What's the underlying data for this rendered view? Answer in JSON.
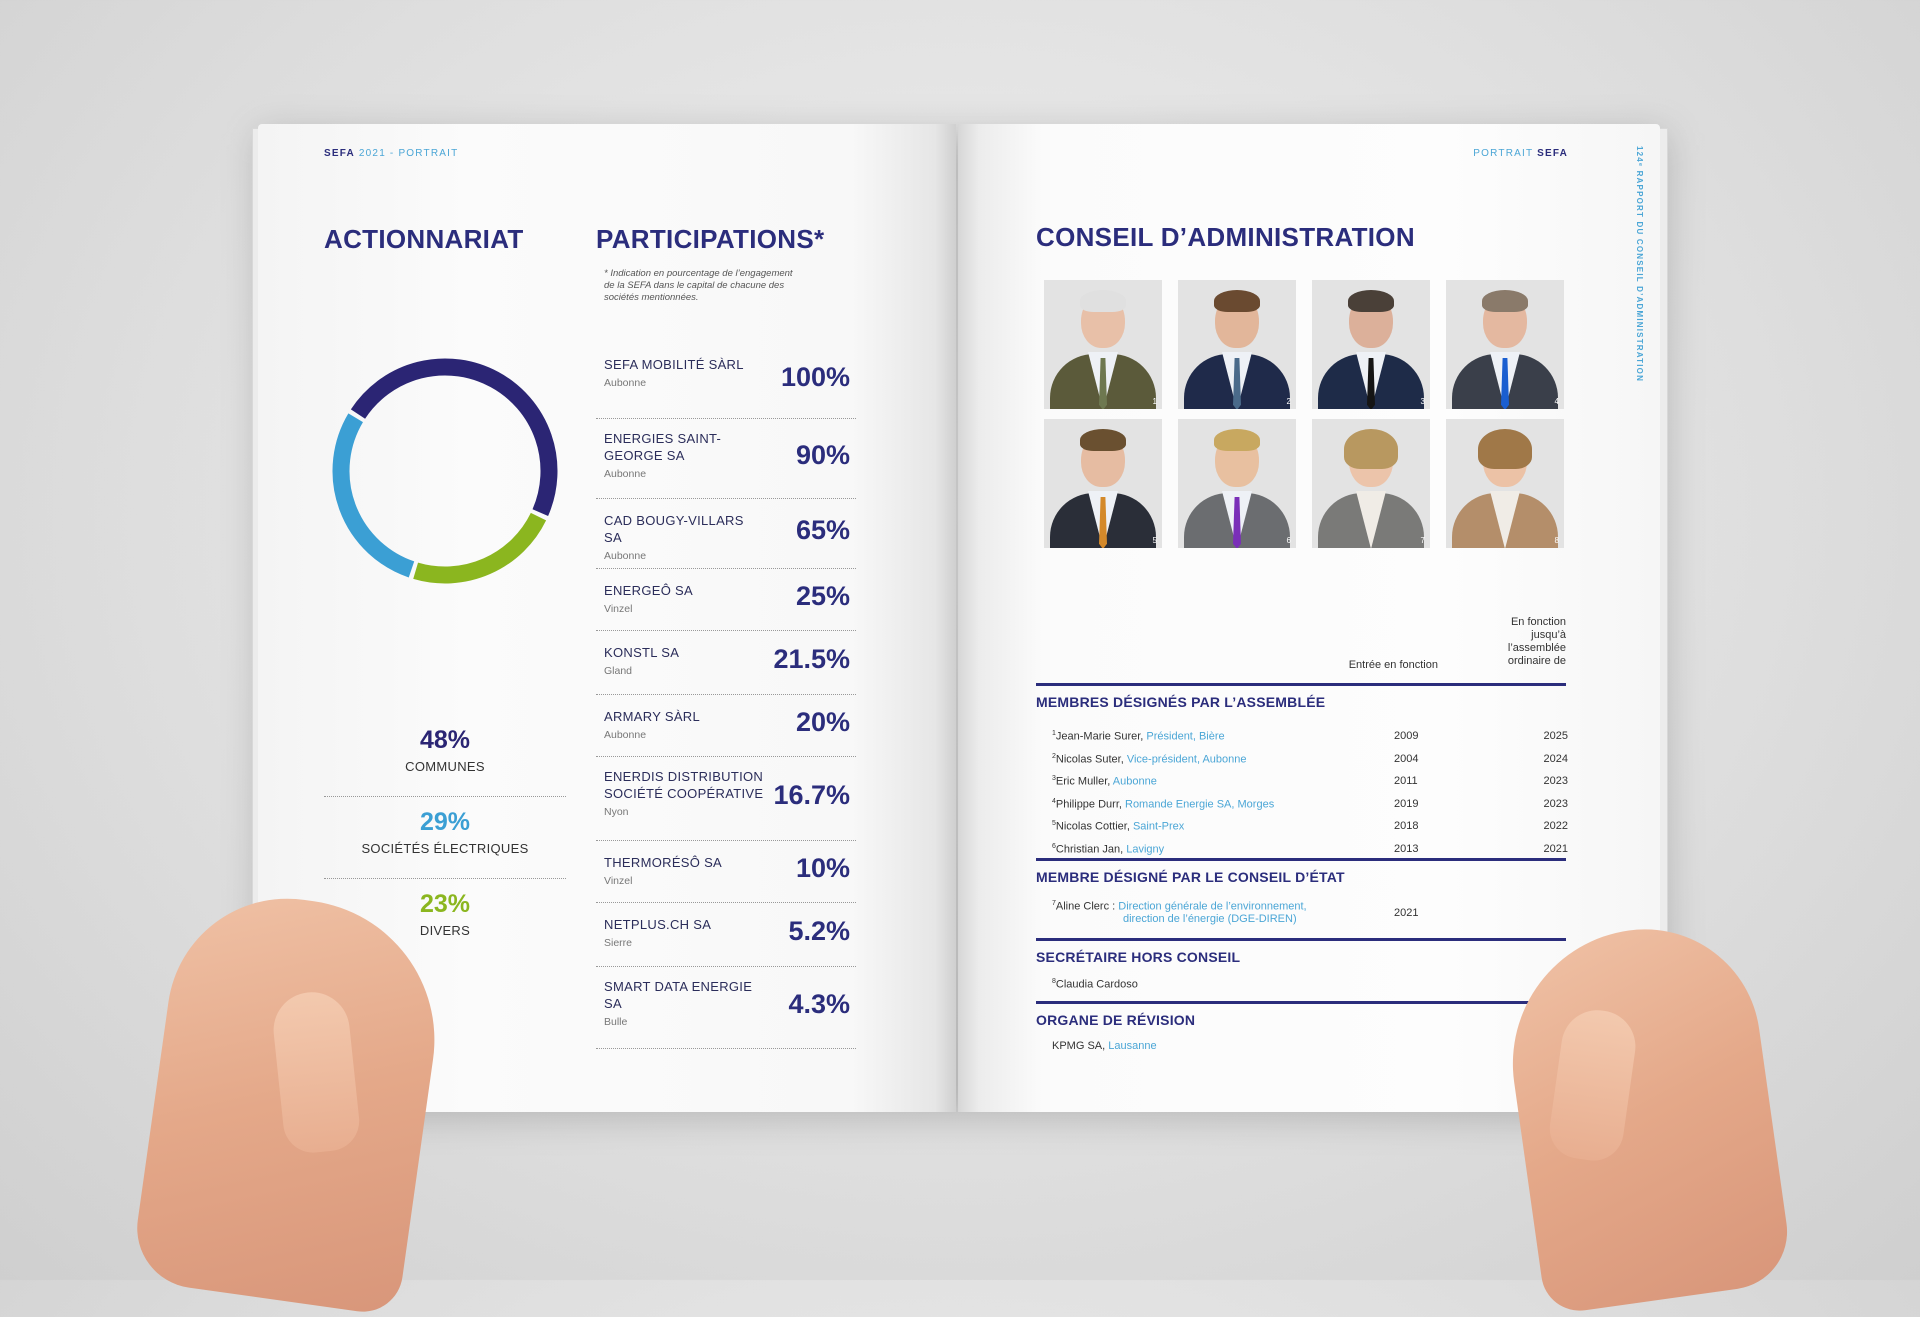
{
  "left_page": {
    "running_head": {
      "brand": "SEFA",
      "rest": "2021 - PORTRAIT"
    },
    "shareholding_title": "ACTIONNARIAT",
    "participations_title": "PARTICIPATIONS*",
    "participations_note": "* Indication en pourcentage de l’engagement de la SEFA dans le capital de chacune des sociétés mentionnées.",
    "participations": [
      {
        "name": "SEFA MOBILITÉ SÀRL",
        "city": "Aubonne",
        "value": "100%"
      },
      {
        "name": "ENERGIES SAINT-GEORGE SA",
        "city": "Aubonne",
        "value": "90%"
      },
      {
        "name": "CAD BOUGY-VILLARS SA",
        "city": "Aubonne",
        "value": "65%"
      },
      {
        "name": "ENERGEÔ SA",
        "city": "Vinzel",
        "value": "25%"
      },
      {
        "name": "KONSTL SA",
        "city": "Gland",
        "value": "21.5%"
      },
      {
        "name": "ARMARY SÀRL",
        "city": "Aubonne",
        "value": "20%"
      },
      {
        "name": "ENERDIS DISTRIBUTION SOCIÉTÉ COOPÉRATIVE",
        "city": "Nyon",
        "value": "16.7%"
      },
      {
        "name": "THERMORÉSÔ SA",
        "city": "Vinzel",
        "value": "10%"
      },
      {
        "name": "NETPLUS.CH SA",
        "city": "Sierre",
        "value": "5.2%"
      },
      {
        "name": "SMART DATA ENERGIE SA",
        "city": "Bulle",
        "value": "4.3%"
      }
    ]
  },
  "chart_data": {
    "type": "pie",
    "title": "ACTIONNARIAT",
    "categories": [
      "COMMUNES",
      "SOCIÉTÉS ÉLECTRIQUES",
      "DIVERS"
    ],
    "values": [
      48,
      29,
      23
    ],
    "labels": [
      "48%",
      "29%",
      "23%"
    ],
    "colors": [
      "#2b2574",
      "#3b9fd4",
      "#8bb61f"
    ],
    "donut": true
  },
  "right_page": {
    "running_head": {
      "rest": "PORTRAIT",
      "brand": "SEFA"
    },
    "vertical_text": "124ᵉ RAPPORT DU CONSEIL D’ADMINISTRATION",
    "title": "CONSEIL D’ADMINISTRATION",
    "photos": [
      "1",
      "2",
      "3",
      "4",
      "5",
      "6",
      "7",
      "8"
    ],
    "col_entry": "Entrée en fonction",
    "col_until": "En fonction jusqu’à l’assemblée ordinaire de",
    "sections": [
      {
        "title": "MEMBRES DÉSIGNÉS PAR L’ASSEMBLÉE",
        "rows": [
          {
            "num": "1",
            "name": "Jean-Marie Surer, ",
            "role": "Président, Bière",
            "entry": "2009",
            "until": "2025"
          },
          {
            "num": "2",
            "name": "Nicolas Suter, ",
            "role": "Vice-président, Aubonne",
            "entry": "2004",
            "until": "2024"
          },
          {
            "num": "3",
            "name": "Eric Muller, ",
            "role": "Aubonne",
            "entry": "2011",
            "until": "2023"
          },
          {
            "num": "4",
            "name": "Philippe Durr, ",
            "role": "Romande Energie SA, Morges",
            "entry": "2019",
            "until": "2023"
          },
          {
            "num": "5",
            "name": "Nicolas Cottier, ",
            "role": "Saint-Prex",
            "entry": "2018",
            "until": "2022"
          },
          {
            "num": "6",
            "name": "Christian Jan, ",
            "role": "Lavigny",
            "entry": "2013",
            "until": "2021"
          }
        ]
      },
      {
        "title": "MEMBRE DÉSIGNÉ PAR LE CONSEIL D’ÉTAT",
        "rows": [
          {
            "num": "7",
            "name": "Aline Clerc : ",
            "role": "Direction générale de l’environnement,",
            "role2": "direction de l’énergie (DGE-DIREN)",
            "entry": "2021",
            "until": ""
          }
        ]
      },
      {
        "title": "SECRÉTAIRE HORS CONSEIL",
        "rows": [
          {
            "num": "8",
            "name": "Claudia Cardoso",
            "role": "",
            "entry": "",
            "until": ""
          }
        ]
      },
      {
        "title": "ORGANE DE RÉVISION",
        "rows": [
          {
            "num": "",
            "name": "KPMG SA, ",
            "role": "Lausanne",
            "entry": "",
            "until": "20"
          }
        ]
      }
    ]
  }
}
